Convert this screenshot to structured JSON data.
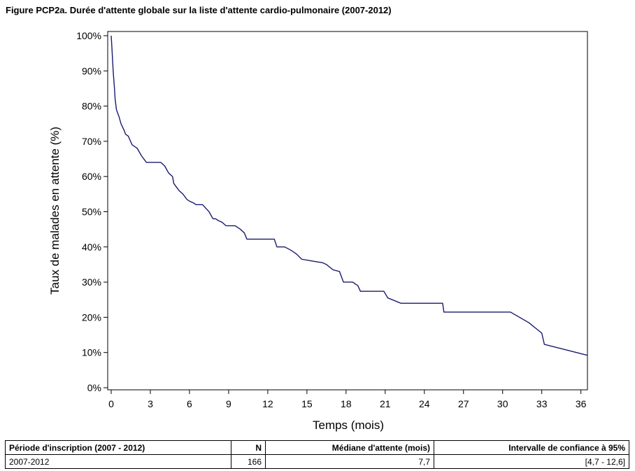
{
  "title": "Figure PCP2a. Durée d'attente globale sur la liste d'attente cardio-pulmonaire (2007-2012)",
  "chart_data": {
    "type": "line",
    "title": "Figure PCP2a. Durée d'attente globale sur la liste d'attente cardio-pulmonaire (2007-2012)",
    "xlabel": "Temps (mois)",
    "ylabel": "Taux de malades en attente (%)",
    "xlim": [
      0,
      36.5
    ],
    "ylim": [
      0,
      100
    ],
    "xticks": [
      0,
      3,
      6,
      9,
      12,
      15,
      18,
      21,
      24,
      27,
      30,
      33,
      36
    ],
    "xtick_labels": [
      "0",
      "3",
      "6",
      "9",
      "12",
      "15",
      "18",
      "21",
      "24",
      "27",
      "30",
      "33",
      "36"
    ],
    "yticks": [
      0,
      10,
      20,
      30,
      40,
      50,
      60,
      70,
      80,
      90,
      100
    ],
    "ytick_labels": [
      "0%",
      "10%",
      "20%",
      "30%",
      "40%",
      "50%",
      "60%",
      "70%",
      "80%",
      "90%",
      "100%"
    ],
    "grid": false,
    "legend": "none",
    "line_color": "#1a1a6e",
    "series": [
      {
        "x": [
          0,
          0.05,
          0.15,
          0.25,
          0.3,
          0.4,
          0.5,
          0.6,
          0.75,
          1.0,
          1.1,
          1.3,
          1.6,
          1.8,
          2.0,
          2.3,
          2.5,
          2.7,
          2.9,
          3.0,
          3.2,
          3.8,
          4.1,
          4.4,
          4.7,
          4.8,
          5.0,
          5.2,
          5.5,
          5.8,
          6.0,
          6.3,
          6.5,
          7.0,
          7.5,
          7.8,
          8.0,
          8.2,
          8.5,
          8.8,
          9.0,
          9.5,
          9.9,
          10.2,
          10.4,
          10.8,
          12.5,
          12.7,
          13.3,
          13.8,
          14.2,
          14.6,
          15.4,
          16.2,
          16.5,
          17.0,
          17.5,
          17.8,
          18.5,
          18.9,
          19.1,
          20.3,
          20.9,
          21.2,
          22.2,
          23.0,
          25.4,
          25.5,
          27.0,
          30.6,
          32.0,
          33.0,
          33.2,
          36.5
        ],
        "y": [
          100,
          97,
          90,
          85,
          82,
          79,
          78,
          77,
          75,
          73,
          72,
          71.5,
          69,
          68.5,
          68,
          66,
          65,
          64,
          64,
          64,
          64,
          64,
          63,
          61,
          60,
          58,
          57,
          56,
          55,
          53.5,
          53,
          52.5,
          52,
          52,
          50,
          48,
          48,
          47.5,
          47,
          46,
          46,
          46,
          45,
          44,
          42.2,
          42.2,
          42.2,
          40,
          40,
          39,
          38,
          36.5,
          36,
          35.5,
          35,
          33.5,
          33,
          30,
          30,
          29,
          27.4,
          27.4,
          27.4,
          25.5,
          24,
          24,
          24,
          21.5,
          21.5,
          21.5,
          18.5,
          15.5,
          12.3,
          9.2
        ]
      }
    ]
  },
  "summary_table": {
    "headers": [
      "Période d'inscription (2007 - 2012)",
      "N",
      "Médiane d'attente (mois)",
      "Intervalle de confiance à 95%"
    ],
    "row": [
      "2007-2012",
      "166",
      "7,7",
      "[4,7 - 12,6]"
    ]
  }
}
